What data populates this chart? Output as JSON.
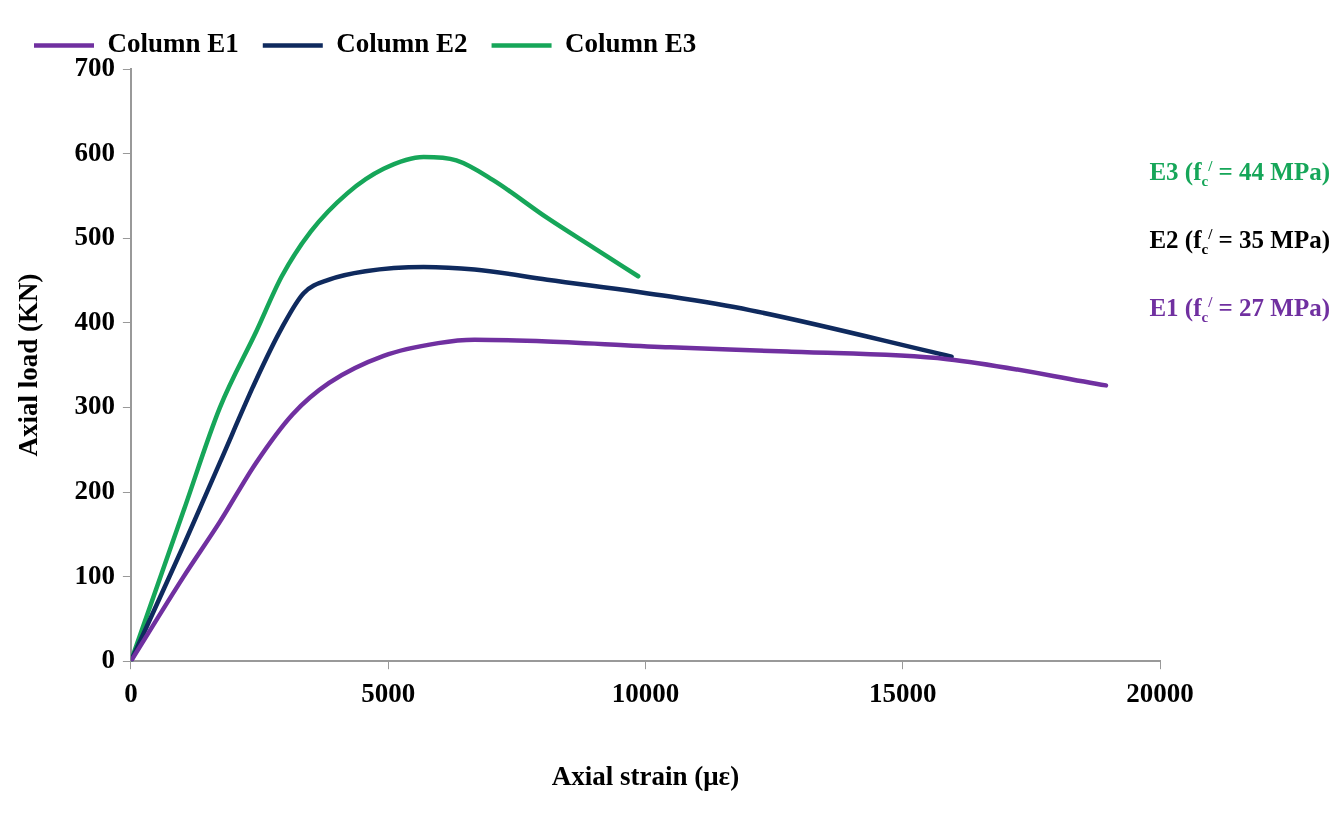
{
  "chart_data": {
    "type": "line",
    "xlabel": "Axial strain (με)",
    "ylabel": "Axial load (KN)",
    "xlim": [
      0,
      20000
    ],
    "xticks": [
      0,
      5000,
      10000,
      15000,
      20000
    ],
    "ylim": [
      0,
      700
    ],
    "yticks": [
      0,
      100,
      200,
      300,
      400,
      500,
      600,
      700
    ],
    "grid": false,
    "legend": "top",
    "marker": "none",
    "line_style": "solid",
    "annotations": [
      "E3  (f$_{c}$$^{/}$ = 44 MPa)",
      "E2  (f$_{c}$$^{/}$ = 35 MPa)",
      "E1  (f$_{c}$$^{/}$ = 27 MPa)"
    ],
    "series": [
      {
        "name": "Column E1",
        "color": "#7030a0",
        "x": [
          0,
          1025,
          1731,
          2438,
          3145,
          3852,
          4912,
          5972,
          6678,
          8092,
          10481,
          12760,
          15870,
          18950
        ],
        "values": [
          0,
          100,
          165,
          235,
          292,
          329,
          361,
          376,
          380,
          378,
          371,
          366,
          357,
          326
        ]
      },
      {
        "name": "Column E2",
        "color": "#0f2a5e",
        "x": [
          0,
          1025,
          1731,
          2438,
          2933,
          3357,
          3852,
          4558,
          5689,
          6678,
          8092,
          10481,
          12025,
          15950
        ],
        "values": [
          0,
          137,
          235,
          333,
          394,
          435,
          451,
          461,
          466,
          463,
          451,
          431,
          415,
          360
        ]
      },
      {
        "name": "Column E3",
        "color": "#16a659",
        "x": [
          0,
          1025,
          1731,
          2438,
          2933,
          3498,
          4205,
          4912,
          5689,
          6325,
          7032,
          8092,
          9011,
          9859
        ],
        "values": [
          0,
          178,
          300,
          390,
          455,
          508,
          553,
          582,
          596,
          592,
          569,
          524,
          488,
          455
        ]
      }
    ]
  }
}
